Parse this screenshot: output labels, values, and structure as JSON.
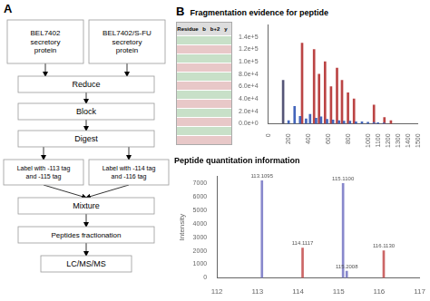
{
  "chart_data": [
    {
      "type": "flowchart",
      "title": "A",
      "annotations": [
        "BEL7402\nsecretory\nprotein",
        "BEL7402/S-FU\nsecretory\nprotein",
        "Reduce",
        "Block",
        "Digest",
        "Label with -113 tag\nand -115 tag",
        "Label with -114 tag\nand -116 tag",
        "Mixture",
        "Peptides fractionation",
        "LC/MS/MS"
      ]
    },
    {
      "type": "table",
      "categories": [
        "Residue",
        "b",
        "b+2",
        "y"
      ],
      "colors": [
        "#c8e0c8",
        "#e8c8c8",
        "#c8e0c8",
        "#e8c8c8",
        "#c8e0c8",
        "#e8c8c8",
        "#c8e0c8",
        "#e8c8c8",
        "#c8e0c8",
        "#e8c8c8",
        "#c8e0c8",
        "#e8c8c8"
      ]
    },
    {
      "type": "bar",
      "title": "Fragmentation evidence for peptide",
      "annotations": [
        "B"
      ],
      "series": [
        {
          "color": "#555577",
          "x": [
            150
          ],
          "values": [
            70000
          ]
        },
        {
          "color": "#4466bb",
          "x": [
            205,
            265,
            320,
            380,
            420,
            480,
            530,
            590,
            650,
            710,
            760,
            820,
            880,
            940,
            1000,
            1060,
            1100,
            1160
          ],
          "values": [
            5000,
            28000,
            12000,
            8000,
            15000,
            9000,
            11000,
            7000,
            6000,
            5000,
            4000,
            4000,
            3000,
            3000,
            2500,
            2000,
            1500,
            1200
          ]
        },
        {
          "color": "#bb4444",
          "x": [
            340,
            460,
            510,
            570,
            630,
            690,
            740,
            800,
            860,
            1060,
            1165,
            1230
          ],
          "values": [
            130000,
            120000,
            80000,
            100000,
            60000,
            90000,
            70000,
            50000,
            40000,
            30000,
            10000,
            5000
          ]
        }
      ],
      "xlim": [
        0,
        1500
      ],
      "xticks": [
        0,
        200,
        400,
        600,
        800,
        1000,
        1100,
        1200,
        1300,
        1400,
        1500
      ],
      "ylim": [
        0,
        160000
      ],
      "yticks": [
        {
          "value": 0,
          "label": "0.0e+0"
        },
        {
          "value": 20000,
          "label": "2.0e+4"
        },
        {
          "value": 40000,
          "label": "4.0e+4"
        },
        {
          "value": 60000,
          "label": "6.0e+4"
        },
        {
          "value": 80000,
          "label": "8.0e+4"
        },
        {
          "value": 100000,
          "label": "1.0e+5"
        },
        {
          "value": 120000,
          "label": "1.2e+5"
        },
        {
          "value": 140000,
          "label": "1.4e+5"
        }
      ],
      "grid": false
    },
    {
      "type": "bar",
      "title": "Peptide quantitation information",
      "ylabel": "Intensity",
      "x": [
        113.1095,
        114.1117,
        115.11,
        115.2008,
        116.113
      ],
      "values": [
        7200,
        2200,
        7000,
        500,
        2000
      ],
      "colors": [
        "#8888cc",
        "#cc6666",
        "#8888cc",
        "#8888cc",
        "#cc6666"
      ],
      "annotations": [
        "113.1095",
        "114.1117",
        "115.1100",
        "115.2008",
        "116.1130"
      ],
      "xlim": [
        112,
        117
      ],
      "xticks": [
        112,
        113,
        114,
        115,
        116,
        117
      ],
      "ylim": [
        0,
        7500
      ],
      "yticks": [
        0,
        1000,
        2000,
        3000,
        4000,
        5000,
        6000,
        7000
      ],
      "grid": false
    }
  ]
}
